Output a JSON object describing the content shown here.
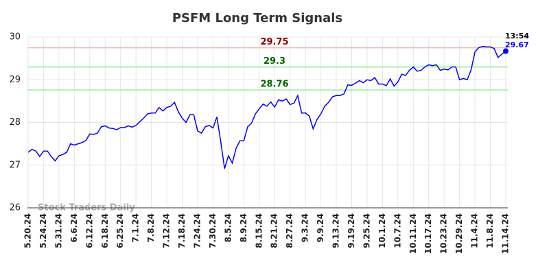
{
  "chart_data": {
    "type": "line",
    "title": "PSFM Long Term Signals",
    "watermark": "Stock Traders Daily",
    "time_label": "13:54",
    "categories": [
      "5.20.24",
      null,
      null,
      null,
      "5.24.24",
      null,
      null,
      null,
      "5.31.24",
      null,
      null,
      null,
      "6.6.24",
      null,
      null,
      null,
      "6.12.24",
      null,
      null,
      null,
      "6.18.24",
      null,
      null,
      null,
      "6.25.24",
      null,
      null,
      null,
      "7.1.24",
      null,
      null,
      null,
      "7.8.24",
      null,
      null,
      null,
      "7.12.24",
      null,
      null,
      null,
      "7.18.24",
      null,
      null,
      null,
      "7.24.24",
      null,
      null,
      null,
      "7.30.24",
      null,
      null,
      null,
      "8.5.24",
      null,
      null,
      null,
      "8.9.24",
      null,
      null,
      null,
      "8.15.24",
      null,
      null,
      null,
      "8.21.24",
      null,
      null,
      null,
      "8.27.24",
      null,
      null,
      null,
      "9.3.24",
      null,
      null,
      null,
      "9.9.24",
      null,
      null,
      null,
      "9.13.24",
      null,
      null,
      null,
      "9.19.24",
      null,
      null,
      null,
      "9.25.24",
      null,
      null,
      null,
      "10.1.24",
      null,
      null,
      null,
      "10.7.24",
      null,
      null,
      null,
      "10.11.24",
      null,
      null,
      null,
      "10.17.24",
      null,
      null,
      null,
      "10.23.24",
      null,
      null,
      null,
      "10.29.24",
      null,
      null,
      null,
      "11.4.24",
      null,
      null,
      null,
      "11.8.24",
      null,
      null,
      null,
      "11.14.24"
    ],
    "values": [
      27.3,
      27.37,
      27.33,
      27.2,
      27.33,
      27.33,
      27.2,
      27.1,
      27.22,
      27.25,
      27.3,
      27.5,
      27.47,
      27.5,
      27.53,
      27.58,
      27.73,
      27.72,
      27.75,
      27.9,
      27.92,
      27.87,
      27.86,
      27.83,
      27.88,
      27.88,
      27.92,
      27.89,
      27.93,
      28.02,
      28.1,
      28.2,
      28.22,
      28.22,
      28.35,
      28.27,
      28.35,
      28.38,
      28.47,
      28.25,
      28.1,
      28.0,
      28.18,
      28.18,
      27.8,
      27.75,
      27.9,
      27.93,
      27.87,
      28.13,
      27.55,
      26.92,
      27.22,
      27.05,
      27.4,
      27.57,
      27.57,
      27.9,
      27.98,
      28.2,
      28.32,
      28.43,
      28.38,
      28.48,
      28.36,
      28.53,
      28.5,
      28.55,
      28.42,
      28.45,
      28.63,
      28.22,
      28.22,
      28.15,
      27.85,
      28.07,
      28.2,
      28.38,
      28.47,
      28.6,
      28.63,
      28.63,
      28.67,
      28.88,
      28.87,
      28.92,
      28.98,
      28.93,
      29.0,
      28.98,
      29.05,
      28.9,
      28.9,
      28.86,
      29.02,
      28.85,
      28.95,
      29.13,
      29.1,
      29.22,
      29.3,
      29.2,
      29.22,
      29.3,
      29.35,
      29.33,
      29.35,
      29.22,
      29.25,
      29.23,
      29.3,
      29.3,
      29.0,
      29.03,
      29.0,
      29.23,
      29.65,
      29.75,
      29.78,
      29.77,
      29.77,
      29.73,
      29.52,
      29.6,
      29.67
    ],
    "color": "#0000ff",
    "hlines": [
      {
        "value": 29.75,
        "color": "#ffb3b3",
        "label_color": "#8b0000"
      },
      {
        "value": 29.3,
        "color": "#90ee90",
        "label_color": "#006400"
      },
      {
        "value": 28.76,
        "color": "#90ee90",
        "label_color": "#006400"
      }
    ],
    "ylim": [
      26,
      30
    ],
    "yticks": [
      26,
      27,
      28,
      29,
      30
    ],
    "grid": true
  }
}
